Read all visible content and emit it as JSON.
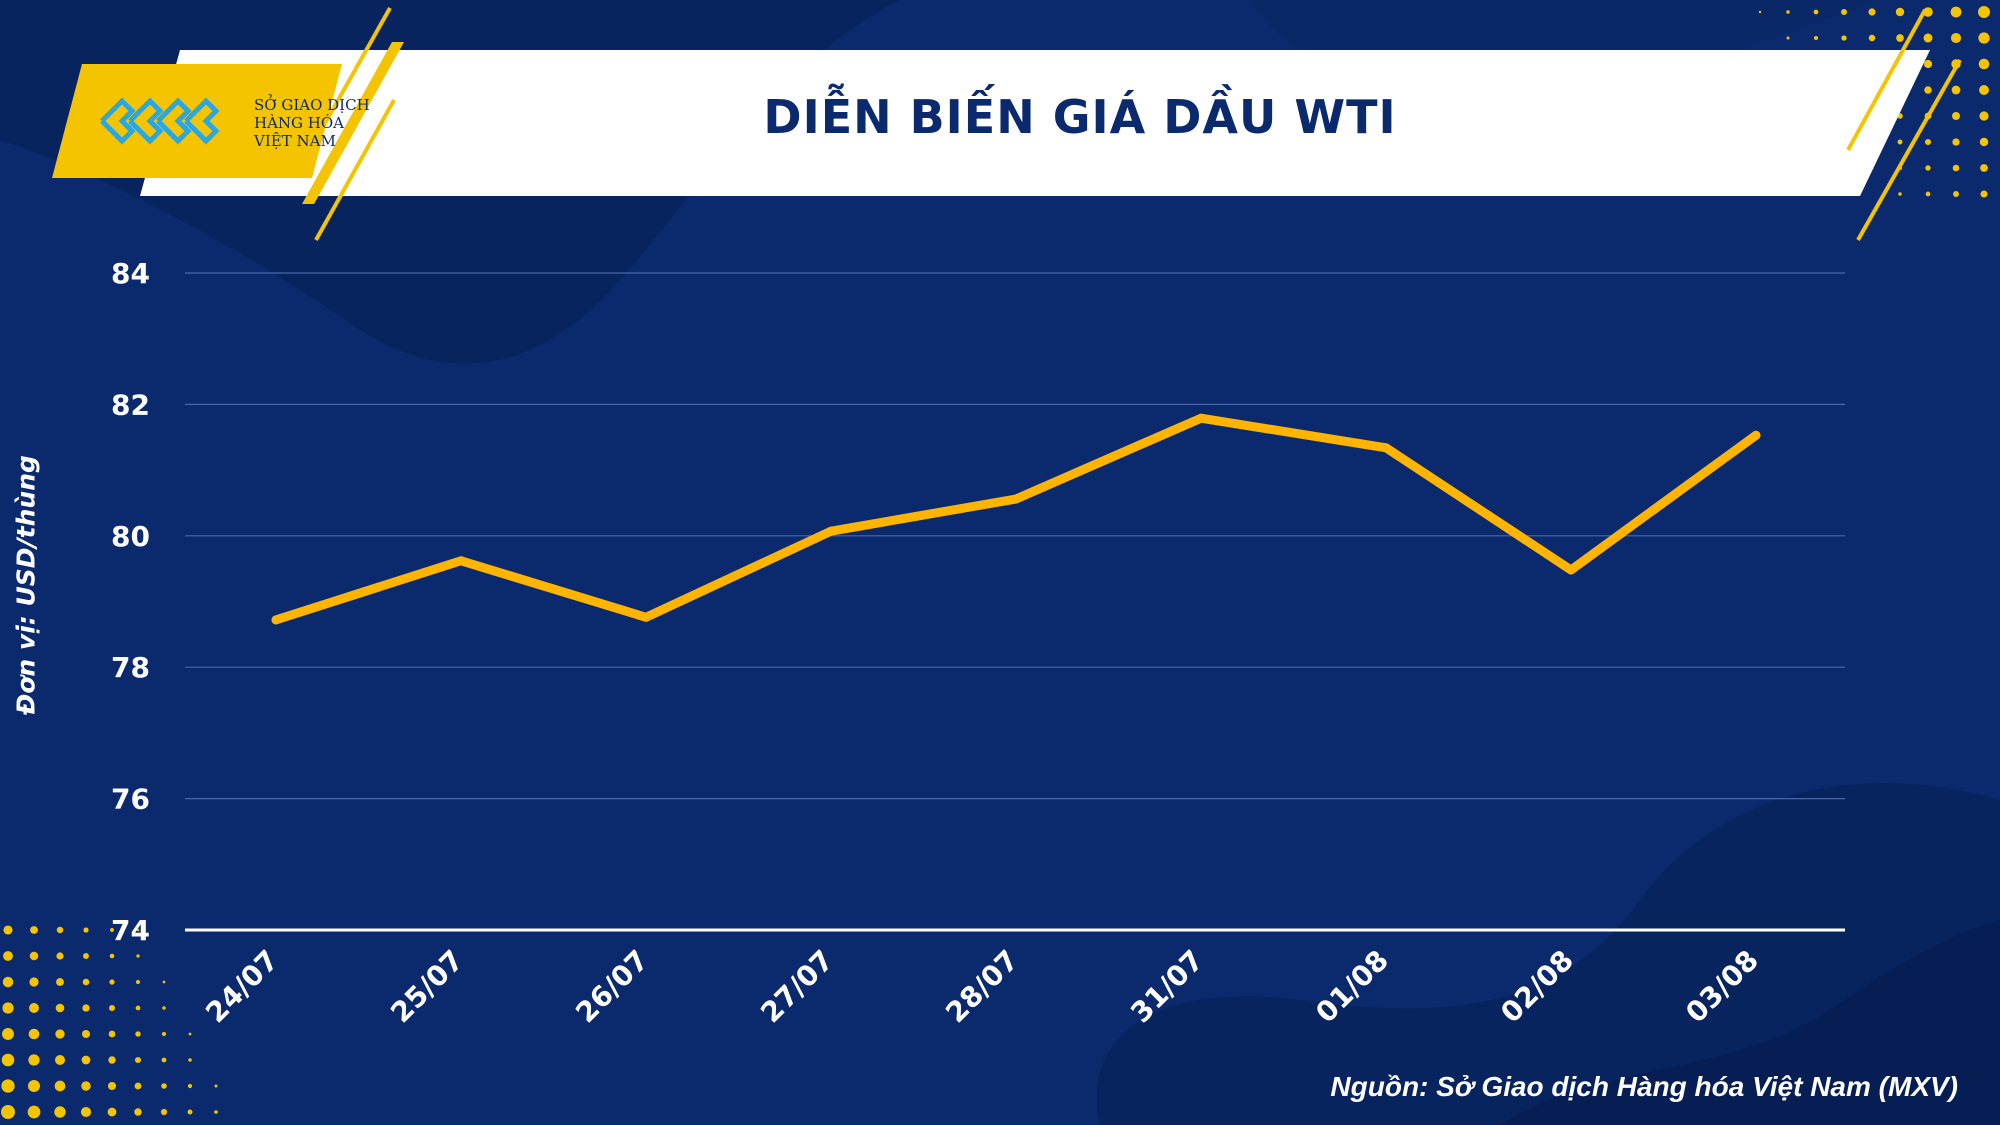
{
  "header": {
    "title": "DIỄN BIẾN GIÁ DẦU WTI",
    "logo_lines": [
      "SỞ GIAO DỊCH",
      "HÀNG HÓA",
      "VIỆT NAM"
    ]
  },
  "footer": {
    "source": "Nguồn: Sở Giao dịch Hàng hóa Việt Nam (MXV)"
  },
  "colors": {
    "background": "#0b2a6e",
    "line": "#ffb400",
    "accent": "#f5c400",
    "title": "#0b2a6e",
    "text": "#ffffff"
  },
  "chart_data": {
    "type": "line",
    "title": "DIỄN BIẾN GIÁ DẦU WTI",
    "ylabel": "Đơn vị: USD/thùng",
    "xlabel": "",
    "categories": [
      "24/07",
      "25/07",
      "26/07",
      "27/07",
      "28/07",
      "31/07",
      "01/08",
      "02/08",
      "03/08"
    ],
    "series": [
      {
        "values": [
          78.72,
          79.62,
          78.76,
          80.07,
          80.56,
          81.79,
          81.34,
          79.48,
          81.53
        ]
      }
    ],
    "ylim": [
      74,
      84
    ],
    "yticks": [
      74,
      76,
      78,
      80,
      82,
      84
    ],
    "grid": true,
    "legend": "none"
  }
}
